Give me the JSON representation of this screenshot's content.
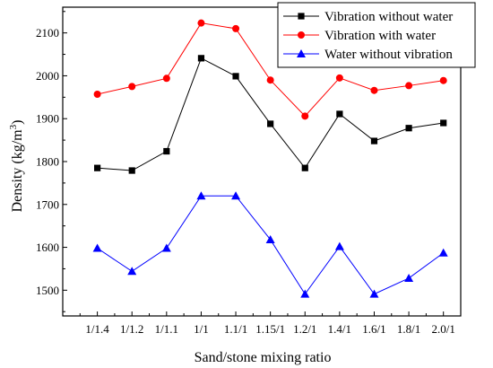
{
  "chart_data": {
    "type": "line",
    "title": "",
    "xlabel": "Sand/stone mixing ratio",
    "ylabel": "Density (kg/m",
    "ylabel_superscript": "3",
    "ylabel_suffix": ")",
    "categories": [
      "1/1.4",
      "1/1.2",
      "1/1.1",
      "1/1",
      "1.1/1",
      "1.15/1",
      "1.2/1",
      "1.4/1",
      "1.6/1",
      "1.8/1",
      "2.0/1"
    ],
    "ylim": [
      1440,
      2160
    ],
    "yticks": [
      1500,
      1600,
      1700,
      1800,
      1900,
      2000,
      2100
    ],
    "grid": false,
    "legend_position": "top-right",
    "series": [
      {
        "name": "Vibration without water",
        "color": "#000000",
        "marker": "square",
        "values": [
          1785,
          1779,
          1824,
          2041,
          1999,
          1888,
          1785,
          1911,
          1848,
          1878,
          1890
        ]
      },
      {
        "name": "Vibration with water",
        "color": "#ff0000",
        "marker": "circle",
        "values": [
          1957,
          1975,
          1994,
          2123,
          2110,
          1990,
          1906,
          1995,
          1966,
          1977,
          1989
        ]
      },
      {
        "name": "Water without vibration",
        "color": "#0000ff",
        "marker": "triangle",
        "values": [
          1598,
          1544,
          1598,
          1720,
          1720,
          1618,
          1491,
          1602,
          1491,
          1528,
          1587
        ]
      }
    ]
  }
}
